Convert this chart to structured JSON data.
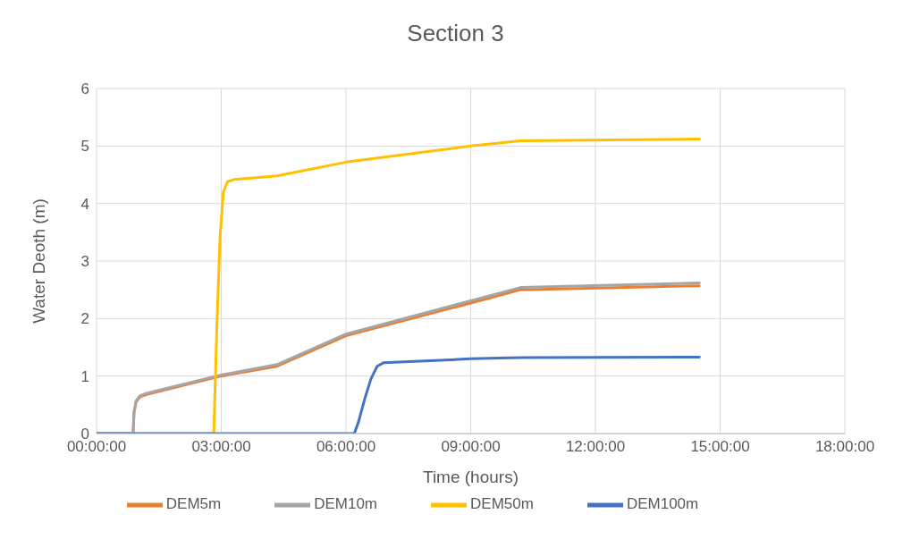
{
  "chart_data": {
    "type": "line",
    "title": "Section 3",
    "xlabel": "Time (hours)",
    "ylabel": "Water Deoth (m)",
    "xlim": [
      0,
      18
    ],
    "xticks": [
      {
        "value": 0,
        "label": "00:00:00"
      },
      {
        "value": 3,
        "label": "03:00:00"
      },
      {
        "value": 6,
        "label": "06:00:00"
      },
      {
        "value": 9,
        "label": "09:00:00"
      },
      {
        "value": 12,
        "label": "12:00:00"
      },
      {
        "value": 15,
        "label": "15:00:00"
      },
      {
        "value": 18,
        "label": "18:00:00"
      }
    ],
    "ylim": [
      0,
      6
    ],
    "yticks": [
      0,
      1,
      2,
      3,
      4,
      5,
      6
    ],
    "grid": true,
    "legend": "bottom",
    "marker": "none",
    "line_style": "solid",
    "series": [
      {
        "name": "DEM5m",
        "color": "#ed7d31",
        "x": [
          0,
          0.88,
          0.9,
          0.95,
          1.05,
          1.2,
          3,
          4.34,
          6,
          9,
          10.2,
          14.5
        ],
        "values": [
          0,
          0,
          0.35,
          0.55,
          0.64,
          0.68,
          1.0,
          1.17,
          1.7,
          2.27,
          2.5,
          2.57
        ]
      },
      {
        "name": "DEM10m",
        "color": "#a5a5a5",
        "x": [
          0,
          0.88,
          0.9,
          0.95,
          1.05,
          1.2,
          3,
          4.34,
          6,
          9,
          10.2,
          14.5
        ],
        "values": [
          0,
          0,
          0.37,
          0.57,
          0.66,
          0.7,
          1.02,
          1.2,
          1.73,
          2.31,
          2.54,
          2.62
        ]
      },
      {
        "name": "DEM50m",
        "color": "#ffc000",
        "x": [
          0,
          2.82,
          2.9,
          2.97,
          3.05,
          3.15,
          3.32,
          4.34,
          6,
          9,
          10.2,
          14.5
        ],
        "values": [
          0,
          0,
          2.0,
          3.4,
          4.2,
          4.38,
          4.42,
          4.48,
          4.72,
          5.0,
          5.09,
          5.12
        ]
      },
      {
        "name": "DEM100m",
        "color": "#4472c4",
        "x": [
          0,
          6.2,
          6.3,
          6.45,
          6.6,
          6.75,
          6.9,
          9,
          10.2,
          14.5
        ],
        "values": [
          0,
          0,
          0.2,
          0.6,
          0.95,
          1.17,
          1.23,
          1.3,
          1.32,
          1.33
        ]
      }
    ]
  }
}
